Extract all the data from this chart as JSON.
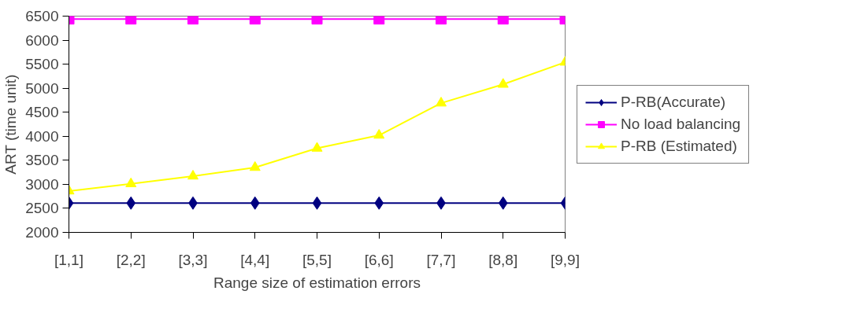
{
  "chart_data": {
    "type": "line",
    "xlabel": "Range size of estimation errors",
    "ylabel": "ART (time unit)",
    "categories": [
      "[1,1]",
      "[2,2]",
      "[3,3]",
      "[4,4]",
      "[5,5]",
      "[6,6]",
      "[7,7]",
      "[8,8]",
      "[9,9]"
    ],
    "ylim": [
      2000,
      6500
    ],
    "yticks": [
      2000,
      2500,
      3000,
      3500,
      4000,
      4500,
      5000,
      5500,
      6000,
      6500
    ],
    "grid": false,
    "legend": "right",
    "series": [
      {
        "name": "P-RB(Accurate)",
        "color": "#000080",
        "marker": "diamond",
        "values": [
          2610,
          2610,
          2610,
          2610,
          2610,
          2610,
          2610,
          2610,
          2610
        ]
      },
      {
        "name": "No load balancing",
        "color": "#ff00ff",
        "marker": "square",
        "values": [
          6440,
          6440,
          6440,
          6440,
          6440,
          6440,
          6440,
          6440,
          6440
        ]
      },
      {
        "name": "P-RB (Estimated)",
        "color": "#ffff00",
        "marker": "triangle",
        "values": [
          2860,
          3010,
          3170,
          3350,
          3750,
          4020,
          4690,
          5080,
          5540
        ]
      }
    ]
  }
}
